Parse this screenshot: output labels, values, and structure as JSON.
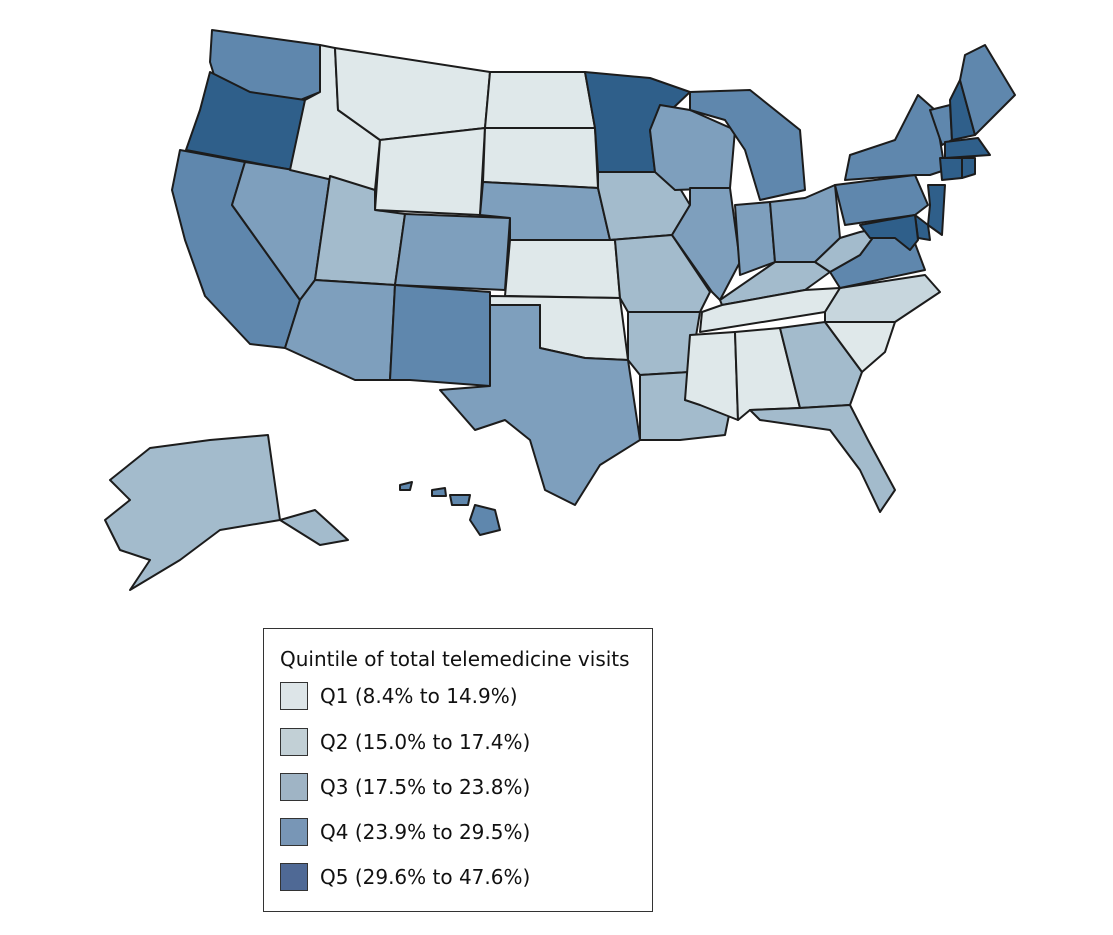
{
  "legend": {
    "title": "Quintile of total telemedicine visits",
    "items": [
      {
        "id": "Q1",
        "label": "Q1 (8.4% to 14.9%)",
        "color": "#dde5e8"
      },
      {
        "id": "Q2",
        "label": "Q2 (15.0% to 17.4%)",
        "color": "#c2d0d6"
      },
      {
        "id": "Q3",
        "label": "Q3 (17.5% to 23.8%)",
        "color": "#9fb4c5"
      },
      {
        "id": "Q4",
        "label": "Q4 (23.9% to 29.5%)",
        "color": "#7896b6"
      },
      {
        "id": "Q5",
        "label": "Q5 (29.6% to 47.6%)",
        "color": "#4f6995"
      }
    ]
  },
  "map_colors": {
    "Q1": "#dfe8ea",
    "Q2": "#c7d6dd",
    "Q3": "#a3bbcc",
    "Q4": "#7e9fbd",
    "Q4b": "#5f87ad",
    "Q5": "#2f5f8a"
  },
  "states": {
    "WA": "Q4b",
    "OR": "Q5",
    "CA": "Q4b",
    "NV": "Q4",
    "ID": "Q1",
    "MT": "Q1",
    "WY": "Q1",
    "UT": "Q3",
    "CO": "Q4",
    "AZ": "Q4",
    "NM": "Q4b",
    "ND": "Q1",
    "SD": "Q1",
    "NE": "Q4",
    "KS": "Q1",
    "OK": "Q1",
    "TX": "Q4",
    "MN": "Q5",
    "IA": "Q3",
    "MO": "Q3",
    "AR": "Q3",
    "LA": "Q3",
    "WI": "Q4",
    "IL": "Q4",
    "MI": "Q4b",
    "IN": "Q4",
    "OH": "Q4",
    "KY": "Q3",
    "TN": "Q1",
    "MS": "Q1",
    "AL": "Q1",
    "GA": "Q3",
    "FL": "Q3",
    "SC": "Q1",
    "NC": "Q2",
    "VA": "Q4b",
    "WV": "Q3",
    "PA": "Q4b",
    "NY": "Q4b",
    "VT": "Q4b",
    "NH": "Q5",
    "ME": "Q4b",
    "MA": "Q5",
    "CT": "Q5",
    "RI": "Q5",
    "NJ": "Q5",
    "DE": "Q5",
    "MD": "Q5",
    "AK": "Q3",
    "HI": "Q4b"
  }
}
